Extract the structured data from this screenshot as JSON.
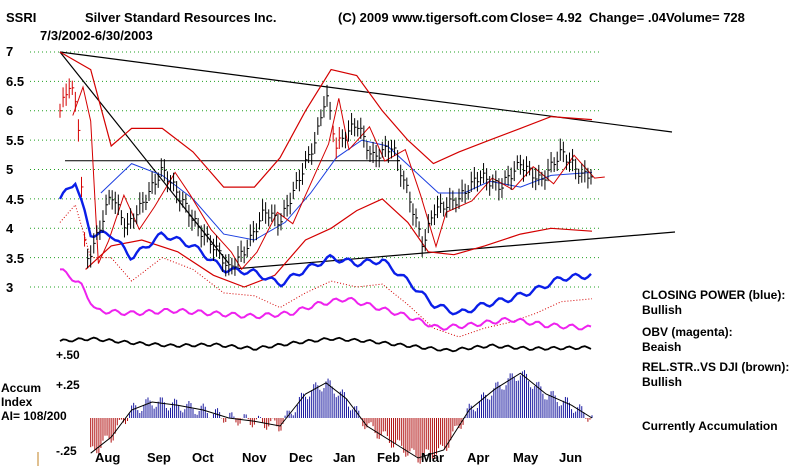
{
  "header": {
    "ticker": "SSRI",
    "company": "Silver Standard Resources Inc.",
    "copyright": "(C) 2009 www.tigersoft.com",
    "close": "Close=  4.92",
    "change": "Change= .04",
    "volume": "Volume= 728",
    "date_range": "7/3/2002-6/30/2003"
  },
  "notes": {
    "closing_power_title": "CLOSING POWER (blue):",
    "closing_power_value": "Bullish",
    "obv_title": "OBV (magenta):",
    "obv_value": "Beaish",
    "relstr_title": "REL.STR..VS DJI (brown):",
    "relstr_value": "Bullish",
    "status": "Currently Accumulation"
  },
  "accum": {
    "line1": "Accum",
    "line2": "Index",
    "line3": "AI= 108/200",
    "tick_pos50": "+.50",
    "tick_pos25": "+.25",
    "tick_neg25": "-.25"
  },
  "colors": {
    "price": "#000000",
    "bands": "#d40000",
    "ma_blue": "#1c3fe0",
    "closing_power": "#0a1ee8",
    "obv": "#ee22ee",
    "rel_strength": "#000000",
    "accum_pos": "#1a1aa0",
    "accum_neg": "#b01010",
    "grid": "#20a020"
  },
  "chart_data": {
    "type": "line",
    "title": "Silver Standard Resources Inc.",
    "x_tick_labels": [
      "Aug",
      "Sep",
      "Oct",
      "Nov",
      "Dec",
      "Jan",
      "Feb",
      "Mar",
      "Apr",
      "May",
      "Jun"
    ],
    "y_tick_labels": [
      "7",
      "6.5",
      "6",
      "5.5",
      "5",
      "4.5",
      "4",
      "3.5",
      "3"
    ],
    "ylim": [
      3,
      7
    ],
    "grid": true,
    "price_series": [
      {
        "t": 0.0,
        "v": 6.0
      },
      {
        "t": 0.2,
        "v": 6.5
      },
      {
        "t": 0.35,
        "v": 5.9
      },
      {
        "t": 0.5,
        "v": 3.4
      },
      {
        "t": 0.7,
        "v": 3.8
      },
      {
        "t": 1.0,
        "v": 4.6
      },
      {
        "t": 1.3,
        "v": 4.0
      },
      {
        "t": 1.6,
        "v": 4.4
      },
      {
        "t": 2.0,
        "v": 5.0
      },
      {
        "t": 2.3,
        "v": 4.6
      },
      {
        "t": 2.7,
        "v": 4.0
      },
      {
        "t": 3.1,
        "v": 3.6
      },
      {
        "t": 3.3,
        "v": 3.3
      },
      {
        "t": 3.6,
        "v": 3.6
      },
      {
        "t": 4.0,
        "v": 4.3
      },
      {
        "t": 4.3,
        "v": 4.1
      },
      {
        "t": 4.7,
        "v": 4.9
      },
      {
        "t": 5.0,
        "v": 5.5
      },
      {
        "t": 5.2,
        "v": 6.3
      },
      {
        "t": 5.4,
        "v": 5.4
      },
      {
        "t": 5.8,
        "v": 5.8
      },
      {
        "t": 6.1,
        "v": 5.2
      },
      {
        "t": 6.5,
        "v": 5.4
      },
      {
        "t": 6.8,
        "v": 4.6
      },
      {
        "t": 7.1,
        "v": 3.7
      },
      {
        "t": 7.3,
        "v": 4.3
      },
      {
        "t": 7.8,
        "v": 4.5
      },
      {
        "t": 8.2,
        "v": 4.9
      },
      {
        "t": 8.6,
        "v": 4.7
      },
      {
        "t": 9.0,
        "v": 5.1
      },
      {
        "t": 9.4,
        "v": 4.8
      },
      {
        "t": 9.8,
        "v": 5.3
      },
      {
        "t": 10.2,
        "v": 4.9
      },
      {
        "t": 10.4,
        "v": 4.92
      }
    ],
    "upper_band": [
      {
        "t": 0.0,
        "v": 7.0
      },
      {
        "t": 0.6,
        "v": 6.7
      },
      {
        "t": 1.0,
        "v": 5.4
      },
      {
        "t": 1.4,
        "v": 5.7
      },
      {
        "t": 2.0,
        "v": 5.7
      },
      {
        "t": 2.6,
        "v": 5.3
      },
      {
        "t": 3.2,
        "v": 4.7
      },
      {
        "t": 3.8,
        "v": 4.7
      },
      {
        "t": 4.3,
        "v": 5.2
      },
      {
        "t": 4.8,
        "v": 6.0
      },
      {
        "t": 5.3,
        "v": 6.7
      },
      {
        "t": 5.8,
        "v": 6.6
      },
      {
        "t": 6.3,
        "v": 6.0
      },
      {
        "t": 6.8,
        "v": 5.5
      },
      {
        "t": 7.3,
        "v": 5.1
      },
      {
        "t": 7.8,
        "v": 5.3
      },
      {
        "t": 8.4,
        "v": 5.5
      },
      {
        "t": 9.0,
        "v": 5.7
      },
      {
        "t": 9.6,
        "v": 5.9
      },
      {
        "t": 10.4,
        "v": 5.85
      }
    ],
    "lower_band": [
      {
        "t": 0.5,
        "v": 3.3
      },
      {
        "t": 1.0,
        "v": 3.7
      },
      {
        "t": 1.6,
        "v": 3.8
      },
      {
        "t": 2.3,
        "v": 3.6
      },
      {
        "t": 3.0,
        "v": 3.2
      },
      {
        "t": 3.6,
        "v": 3.0
      },
      {
        "t": 4.2,
        "v": 3.2
      },
      {
        "t": 4.8,
        "v": 3.8
      },
      {
        "t": 5.3,
        "v": 4.0
      },
      {
        "t": 5.8,
        "v": 4.3
      },
      {
        "t": 6.3,
        "v": 4.5
      },
      {
        "t": 6.8,
        "v": 4.1
      },
      {
        "t": 7.2,
        "v": 3.6
      },
      {
        "t": 7.7,
        "v": 3.55
      },
      {
        "t": 8.3,
        "v": 3.7
      },
      {
        "t": 9.0,
        "v": 3.9
      },
      {
        "t": 9.6,
        "v": 4.0
      },
      {
        "t": 10.4,
        "v": 3.95
      }
    ],
    "moving_average": [
      {
        "t": 0.8,
        "v": 4.6
      },
      {
        "t": 1.4,
        "v": 5.1
      },
      {
        "t": 2.0,
        "v": 4.9
      },
      {
        "t": 2.6,
        "v": 4.5
      },
      {
        "t": 3.2,
        "v": 3.9
      },
      {
        "t": 3.8,
        "v": 3.8
      },
      {
        "t": 4.4,
        "v": 4.1
      },
      {
        "t": 4.9,
        "v": 4.6
      },
      {
        "t": 5.4,
        "v": 5.2
      },
      {
        "t": 5.9,
        "v": 5.5
      },
      {
        "t": 6.4,
        "v": 5.4
      },
      {
        "t": 6.9,
        "v": 5.0
      },
      {
        "t": 7.4,
        "v": 4.6
      },
      {
        "t": 7.9,
        "v": 4.6
      },
      {
        "t": 8.4,
        "v": 4.8
      },
      {
        "t": 9.0,
        "v": 4.7
      },
      {
        "t": 9.6,
        "v": 4.9
      },
      {
        "t": 10.4,
        "v": 4.95
      }
    ],
    "closing_power": [
      {
        "t": 0.0,
        "v": 4.5
      },
      {
        "t": 0.3,
        "v": 4.8
      },
      {
        "t": 0.6,
        "v": 3.9
      },
      {
        "t": 1.0,
        "v": 3.9
      },
      {
        "t": 1.4,
        "v": 3.5
      },
      {
        "t": 2.0,
        "v": 3.9
      },
      {
        "t": 2.6,
        "v": 3.7
      },
      {
        "t": 3.2,
        "v": 3.3
      },
      {
        "t": 3.8,
        "v": 3.25
      },
      {
        "t": 4.3,
        "v": 3.05
      },
      {
        "t": 4.8,
        "v": 3.3
      },
      {
        "t": 5.3,
        "v": 3.5
      },
      {
        "t": 5.8,
        "v": 3.4
      },
      {
        "t": 6.3,
        "v": 3.45
      },
      {
        "t": 6.8,
        "v": 3.1
      },
      {
        "t": 7.3,
        "v": 2.7
      },
      {
        "t": 7.8,
        "v": 2.55
      },
      {
        "t": 8.3,
        "v": 2.7
      },
      {
        "t": 8.8,
        "v": 2.8
      },
      {
        "t": 9.3,
        "v": 2.95
      },
      {
        "t": 9.8,
        "v": 3.15
      },
      {
        "t": 10.4,
        "v": 3.2
      }
    ],
    "obv": [
      {
        "t": 0.0,
        "v": 3.3
      },
      {
        "t": 0.4,
        "v": 3.05
      },
      {
        "t": 0.7,
        "v": 2.6
      },
      {
        "t": 1.4,
        "v": 2.55
      },
      {
        "t": 2.2,
        "v": 2.6
      },
      {
        "t": 3.0,
        "v": 2.55
      },
      {
        "t": 3.8,
        "v": 2.5
      },
      {
        "t": 4.5,
        "v": 2.55
      },
      {
        "t": 5.0,
        "v": 2.7
      },
      {
        "t": 5.6,
        "v": 2.8
      },
      {
        "t": 6.2,
        "v": 2.65
      },
      {
        "t": 6.8,
        "v": 2.5
      },
      {
        "t": 7.4,
        "v": 2.3
      },
      {
        "t": 8.0,
        "v": 2.35
      },
      {
        "t": 8.8,
        "v": 2.45
      },
      {
        "t": 9.5,
        "v": 2.35
      },
      {
        "t": 10.4,
        "v": 2.3
      }
    ],
    "rel_strength": [
      {
        "t": 0.0,
        "v": 2.08
      },
      {
        "t": 0.6,
        "v": 2.12
      },
      {
        "t": 1.4,
        "v": 2.05
      },
      {
        "t": 2.2,
        "v": 2.0
      },
      {
        "t": 3.0,
        "v": 2.02
      },
      {
        "t": 3.8,
        "v": 1.95
      },
      {
        "t": 4.6,
        "v": 2.05
      },
      {
        "t": 5.3,
        "v": 2.12
      },
      {
        "t": 6.0,
        "v": 2.08
      },
      {
        "t": 6.8,
        "v": 2.0
      },
      {
        "t": 7.6,
        "v": 1.92
      },
      {
        "t": 8.4,
        "v": 2.0
      },
      {
        "t": 9.2,
        "v": 1.95
      },
      {
        "t": 10.4,
        "v": 1.97
      }
    ],
    "accum_index": [
      {
        "t": 0.6,
        "v": -0.22
      },
      {
        "t": 1.0,
        "v": -0.12
      },
      {
        "t": 1.4,
        "v": 0.05
      },
      {
        "t": 1.8,
        "v": 0.1
      },
      {
        "t": 2.3,
        "v": 0.08
      },
      {
        "t": 2.8,
        "v": 0.05
      },
      {
        "t": 3.3,
        "v": 0.0
      },
      {
        "t": 3.8,
        "v": -0.02
      },
      {
        "t": 4.3,
        "v": -0.05
      },
      {
        "t": 4.8,
        "v": 0.15
      },
      {
        "t": 5.2,
        "v": 0.22
      },
      {
        "t": 5.6,
        "v": 0.12
      },
      {
        "t": 6.0,
        "v": -0.05
      },
      {
        "t": 6.5,
        "v": -0.15
      },
      {
        "t": 7.0,
        "v": -0.25
      },
      {
        "t": 7.5,
        "v": -0.2
      },
      {
        "t": 8.0,
        "v": 0.05
      },
      {
        "t": 8.5,
        "v": 0.18
      },
      {
        "t": 9.0,
        "v": 0.28
      },
      {
        "t": 9.5,
        "v": 0.15
      },
      {
        "t": 10.0,
        "v": 0.08
      },
      {
        "t": 10.4,
        "v": 0.0
      }
    ]
  }
}
